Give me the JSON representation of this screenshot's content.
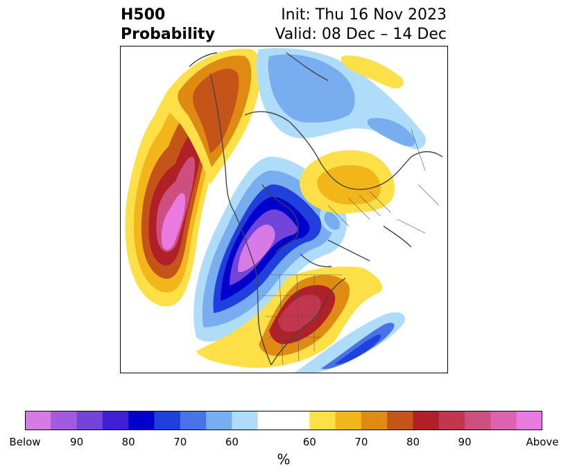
{
  "header": {
    "title_line1": "H500",
    "title_line2": "Probability",
    "init": "Init: Thu 16 Nov 2023",
    "valid": "Valid: 08 Dec – 14 Dec"
  },
  "colorbar": {
    "colors": [
      "#d67be6",
      "#a05be0",
      "#7344d9",
      "#3e1fd4",
      "#0000cc",
      "#2040dd",
      "#4a72e8",
      "#78aef0",
      "#afdcf9",
      "#ffffff",
      "#ffffff",
      "#fde048",
      "#f3b61a",
      "#df8a12",
      "#c55418",
      "#b02026",
      "#c2374e",
      "#cc4f80",
      "#dd62b0",
      "#e87ae0"
    ],
    "tick_labels": [
      "Below",
      "90",
      "80",
      "70",
      "60",
      "60",
      "70",
      "80",
      "90",
      "Above"
    ],
    "unit": "%"
  },
  "map": {
    "projection": "polar-stereographic",
    "variable": "500 hPa height anomaly probability"
  }
}
